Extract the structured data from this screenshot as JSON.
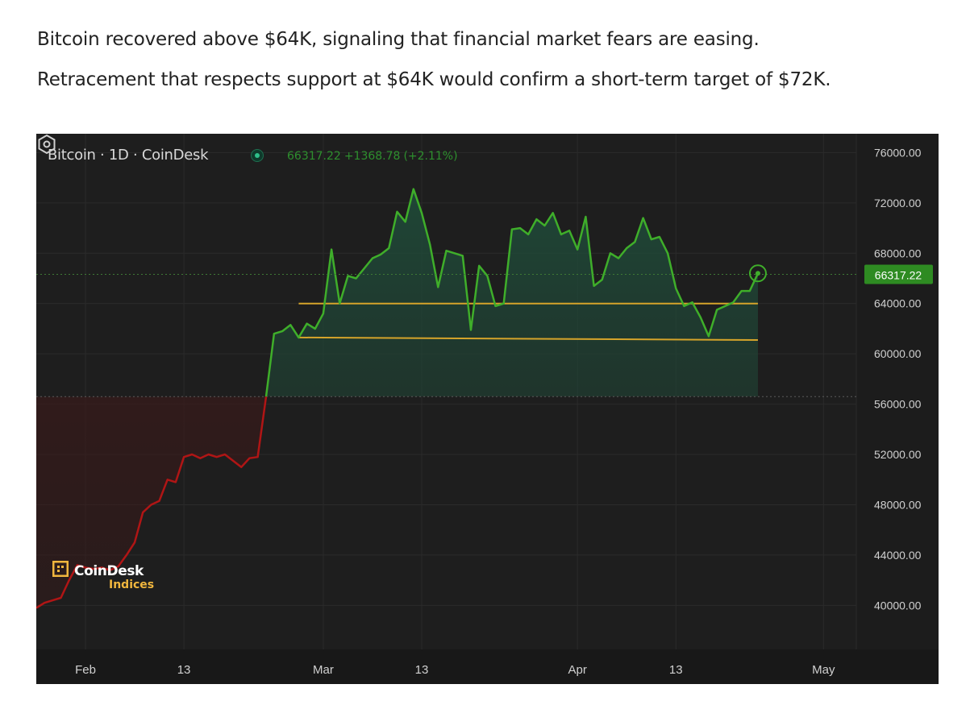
{
  "article": {
    "line1": "Bitcoin recovered above $64K, signaling that financial market fears are easing.",
    "line2": "Retracement that respects support at $64K would confirm a short-term target of $72K."
  },
  "chart_header": {
    "title": "Bitcoin · 1D · CoinDesk",
    "status_icon": "live-dot-icon",
    "last": "66317.22",
    "change": "+1368.78",
    "change_pct": "(+2.11%)"
  },
  "watermark": {
    "brand": "CoinDesk",
    "sub": "Indices",
    "icon": "coindesk-logo-icon"
  },
  "chart_data": {
    "type": "line",
    "title": "",
    "xlabel": "",
    "ylabel": "",
    "ylim": [
      36500,
      77500
    ],
    "xlim": [
      "2024-01-26",
      "2024-05-05"
    ],
    "y_ticks": [
      76000,
      72000,
      68000,
      64000,
      60000,
      56000,
      52000,
      48000,
      44000,
      40000
    ],
    "x_ticks": [
      {
        "date": "2024-02-01",
        "label": "Feb"
      },
      {
        "date": "2024-02-13",
        "label": "13"
      },
      {
        "date": "2024-03-01",
        "label": "Mar"
      },
      {
        "date": "2024-03-13",
        "label": "13"
      },
      {
        "date": "2024-04-01",
        "label": "Apr"
      },
      {
        "date": "2024-04-13",
        "label": "13"
      },
      {
        "date": "2024-05-01",
        "label": "May"
      }
    ],
    "last_price_label": "66317.22",
    "last_price": 66317.22,
    "baseline": 56600,
    "colors": {
      "above": "#3fae2a",
      "below": "#b01515",
      "support": "#d6a42a",
      "last_label_bg": "#2e8b22",
      "axis_text": "#d0d0d0",
      "grid": "#2b2b2b"
    },
    "support_lines": [
      {
        "from": "2024-02-27",
        "to": "2024-04-23",
        "y_start": 64000,
        "y_end": 64000
      },
      {
        "from": "2024-02-27",
        "to": "2024-04-23",
        "y_start": 61300,
        "y_end": 61100
      }
    ],
    "series": [
      {
        "x": [
          "2024-01-26",
          "2024-01-27",
          "2024-01-28",
          "2024-01-29",
          "2024-01-30",
          "2024-01-31",
          "2024-02-01",
          "2024-02-02",
          "2024-02-03",
          "2024-02-04",
          "2024-02-05",
          "2024-02-06",
          "2024-02-07",
          "2024-02-08",
          "2024-02-09",
          "2024-02-10",
          "2024-02-11",
          "2024-02-12",
          "2024-02-13",
          "2024-02-14",
          "2024-02-15",
          "2024-02-16",
          "2024-02-17",
          "2024-02-18",
          "2024-02-19",
          "2024-02-20",
          "2024-02-21",
          "2024-02-22",
          "2024-02-23",
          "2024-02-24",
          "2024-02-25",
          "2024-02-26",
          "2024-02-27",
          "2024-02-28",
          "2024-02-29",
          "2024-03-01",
          "2024-03-02",
          "2024-03-03",
          "2024-03-04",
          "2024-03-05",
          "2024-03-06",
          "2024-03-07",
          "2024-03-08",
          "2024-03-09",
          "2024-03-10",
          "2024-03-11",
          "2024-03-12",
          "2024-03-13",
          "2024-03-14",
          "2024-03-15",
          "2024-03-16",
          "2024-03-17",
          "2024-03-18",
          "2024-03-19",
          "2024-03-20",
          "2024-03-21",
          "2024-03-22",
          "2024-03-23",
          "2024-03-24",
          "2024-03-25",
          "2024-03-26",
          "2024-03-27",
          "2024-03-28",
          "2024-03-29",
          "2024-03-30",
          "2024-03-31",
          "2024-04-01",
          "2024-04-02",
          "2024-04-03",
          "2024-04-04",
          "2024-04-05",
          "2024-04-06",
          "2024-04-07",
          "2024-04-08",
          "2024-04-09",
          "2024-04-10",
          "2024-04-11",
          "2024-04-12",
          "2024-04-13",
          "2024-04-14",
          "2024-04-15",
          "2024-04-16",
          "2024-04-17",
          "2024-04-18",
          "2024-04-19",
          "2024-04-20",
          "2024-04-21",
          "2024-04-22",
          "2024-04-23"
        ],
        "y": [
          39800,
          40200,
          40400,
          40600,
          42000,
          43200,
          43000,
          42900,
          43000,
          42800,
          43100,
          44000,
          45000,
          47400,
          48000,
          48300,
          50000,
          49800,
          51800,
          52000,
          51700,
          52000,
          51800,
          52000,
          51500,
          51000,
          51700,
          51800,
          56500,
          61600,
          61800,
          62300,
          61300,
          62400,
          62000,
          63200,
          68300,
          64000,
          66200,
          66000,
          66800,
          67600,
          67900,
          68400,
          71300,
          70500,
          73100,
          71200,
          68700,
          65300,
          68200,
          68000,
          67800,
          61900,
          67000,
          66200,
          63800,
          64000,
          69900,
          70000,
          69500,
          70700,
          70200,
          71200,
          69500,
          69800,
          68300,
          70900,
          65400,
          65900,
          68000,
          67600,
          68400,
          68900,
          70800,
          69100,
          69300,
          68000,
          65200,
          63800,
          64100,
          62900,
          61400,
          63500,
          63800,
          64100,
          65000,
          65000,
          66400
        ]
      }
    ]
  }
}
